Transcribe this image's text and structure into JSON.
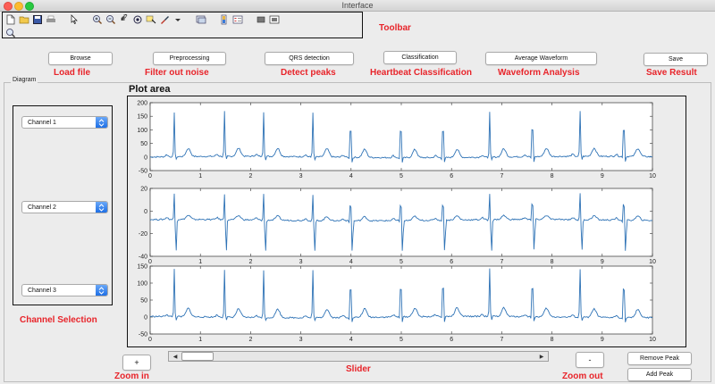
{
  "window": {
    "title": "Interface"
  },
  "toolbar": {
    "row1": [
      "new-file-icon",
      "open-folder-icon",
      "save-icon",
      "print-icon",
      "cursor-icon",
      "zoom-in-icon",
      "zoom-out-icon",
      "pan-hand-icon",
      "rotate-3d-icon",
      "data-cursor-icon",
      "brush-icon",
      "dropdown-arrow-icon",
      "link-plot-icon",
      "colorbar-icon",
      "legend-icon",
      "hide-plot-tools-icon",
      "show-plot-tools-icon"
    ],
    "row2": [
      "zoom-magnifier-icon"
    ]
  },
  "annotations": {
    "toolbar": "Toolbar",
    "load_file": "Load file",
    "filter_noise": "Filter out noise",
    "detect_peaks": "Detect peaks",
    "heartbeat": "Heartbeat Classification",
    "waveform": "Waveform Analysis",
    "save_result": "Save Result",
    "channel_selection": "Channel Selection",
    "slider": "Slider",
    "zoom_in": "Zoom in",
    "zoom_out": "Zoom out"
  },
  "buttons": {
    "browse": "Browse",
    "preprocessing": "Preprocessing",
    "qrs": "QRS detection",
    "classification": "Classification",
    "average": "Average Waveform",
    "save": "Save",
    "zoom_in": "+",
    "zoom_out": "-",
    "remove_peak": "Remove Peak",
    "add_peak": "Add Peak"
  },
  "diagram": {
    "label": "Diagram"
  },
  "channels": {
    "ch1": "Channel 1",
    "ch2": "Channel 2",
    "ch3": "Channel 3"
  },
  "plot_area": {
    "title": "Plot area"
  },
  "colors": {
    "accent": "#e8242a",
    "signal": "#2f73b6"
  },
  "chart_data": [
    {
      "type": "line",
      "title": "",
      "xlim": [
        0,
        10
      ],
      "ylim": [
        -50,
        200
      ],
      "xticks": [
        0,
        1,
        2,
        3,
        4,
        5,
        6,
        7,
        8,
        9,
        10
      ],
      "yticks": [
        -50,
        0,
        50,
        100,
        150,
        200
      ],
      "peaks_x": [
        0.48,
        1.48,
        2.26,
        3.24,
        3.99,
        4.99,
        5.83,
        6.76,
        7.61,
        8.56,
        9.43
      ],
      "peak_y": 165,
      "baseline": 0,
      "t_wave": 30
    },
    {
      "type": "line",
      "title": "",
      "xlim": [
        0,
        10
      ],
      "ylim": [
        -40,
        20
      ],
      "xticks": [
        0,
        1,
        2,
        3,
        4,
        5,
        6,
        7,
        8,
        9,
        10
      ],
      "yticks": [
        -40,
        -20,
        0,
        20
      ],
      "peaks_x": [
        0.48,
        1.48,
        2.26,
        3.24,
        3.99,
        4.99,
        5.83,
        6.76,
        7.61,
        8.56,
        9.43
      ],
      "peak_y": 15,
      "trough_y": -38,
      "baseline": -8
    },
    {
      "type": "line",
      "title": "",
      "xlim": [
        0,
        10
      ],
      "ylim": [
        -50,
        150
      ],
      "xticks": [
        0,
        1,
        2,
        3,
        4,
        5,
        6,
        7,
        8,
        9,
        10
      ],
      "yticks": [
        -50,
        0,
        50,
        100,
        150
      ],
      "peaks_x": [
        0.48,
        1.48,
        2.26,
        3.24,
        3.99,
        4.99,
        5.83,
        6.76,
        7.61,
        8.56,
        9.43
      ],
      "peak_y": 140,
      "baseline": 0,
      "t_wave": 25
    }
  ]
}
